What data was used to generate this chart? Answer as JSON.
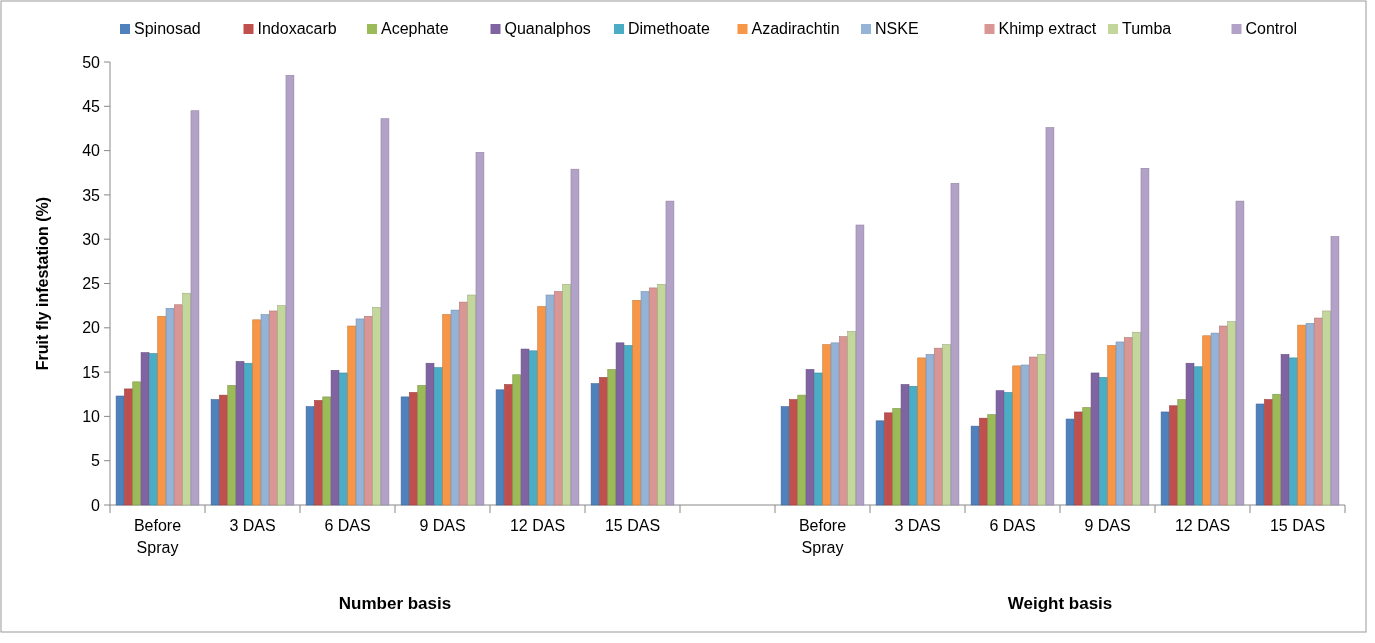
{
  "chart_data": {
    "type": "bar",
    "ylabel": "Fruit fly infestation (%)",
    "categories": [
      "Before Spray",
      "3 DAS",
      "6 DAS",
      "9 DAS",
      "12 DAS",
      "15 DAS",
      null,
      "Before Spray",
      "3 DAS",
      "6 DAS",
      "9 DAS",
      "12 DAS",
      "15 DAS"
    ],
    "series": [
      {
        "name": "Spinosad",
        "color": "#4f81bd",
        "values": [
          12.3,
          11.9,
          11.1,
          12.2,
          13.0,
          13.7,
          null,
          11.1,
          9.5,
          8.9,
          9.7,
          10.5,
          11.4
        ]
      },
      {
        "name": "Indoxacarb",
        "color": "#c0504d",
        "values": [
          13.1,
          12.4,
          11.8,
          12.7,
          13.6,
          14.4,
          null,
          11.9,
          10.4,
          9.8,
          10.5,
          11.2,
          11.9
        ]
      },
      {
        "name": "Acephate",
        "color": "#9bbb59",
        "values": [
          13.9,
          13.5,
          12.2,
          13.5,
          14.7,
          15.3,
          null,
          12.4,
          10.9,
          10.2,
          11.0,
          11.9,
          12.5
        ]
      },
      {
        "name": "Quanalphos",
        "color": "#8064a2",
        "values": [
          17.2,
          16.2,
          15.2,
          16.0,
          17.6,
          18.3,
          null,
          15.3,
          13.6,
          12.9,
          14.9,
          16.0,
          17.0
        ]
      },
      {
        "name": "Dimethoate",
        "color": "#4bacc6",
        "values": [
          17.1,
          16.0,
          14.9,
          15.5,
          17.4,
          18.0,
          null,
          14.9,
          13.4,
          12.7,
          14.4,
          15.6,
          16.6
        ]
      },
      {
        "name": "Azadirachtin",
        "color": "#f79646",
        "values": [
          21.3,
          20.9,
          20.2,
          21.5,
          22.4,
          23.1,
          null,
          18.1,
          16.6,
          15.7,
          18.0,
          19.1,
          20.3
        ]
      },
      {
        "name": "NSKE",
        "color": "#95b3d7",
        "values": [
          22.2,
          21.5,
          21.0,
          22.0,
          23.7,
          24.1,
          null,
          18.3,
          17.0,
          15.8,
          18.4,
          19.4,
          20.5
        ]
      },
      {
        "name": "Khimp extract",
        "color": "#d99694",
        "values": [
          22.6,
          21.9,
          21.3,
          22.9,
          24.1,
          24.5,
          null,
          19.0,
          17.7,
          16.7,
          18.9,
          20.2,
          21.1
        ]
      },
      {
        "name": "Tumba",
        "color": "#c3d69b",
        "values": [
          23.9,
          22.5,
          22.3,
          23.7,
          24.9,
          24.9,
          null,
          19.6,
          18.1,
          17.0,
          19.5,
          20.7,
          21.9
        ]
      },
      {
        "name": "Control",
        "color": "#b3a2c7",
        "values": [
          44.5,
          48.5,
          43.6,
          39.8,
          37.9,
          34.3,
          null,
          31.6,
          36.3,
          42.6,
          38.0,
          34.3,
          30.3
        ]
      }
    ],
    "ylim": [
      0,
      50
    ],
    "yticks": [
      0,
      5,
      10,
      15,
      20,
      25,
      30,
      35,
      40,
      45,
      50
    ],
    "grid": false,
    "legend": "top",
    "annotations": [
      "Number basis",
      "Weight basis"
    ]
  }
}
